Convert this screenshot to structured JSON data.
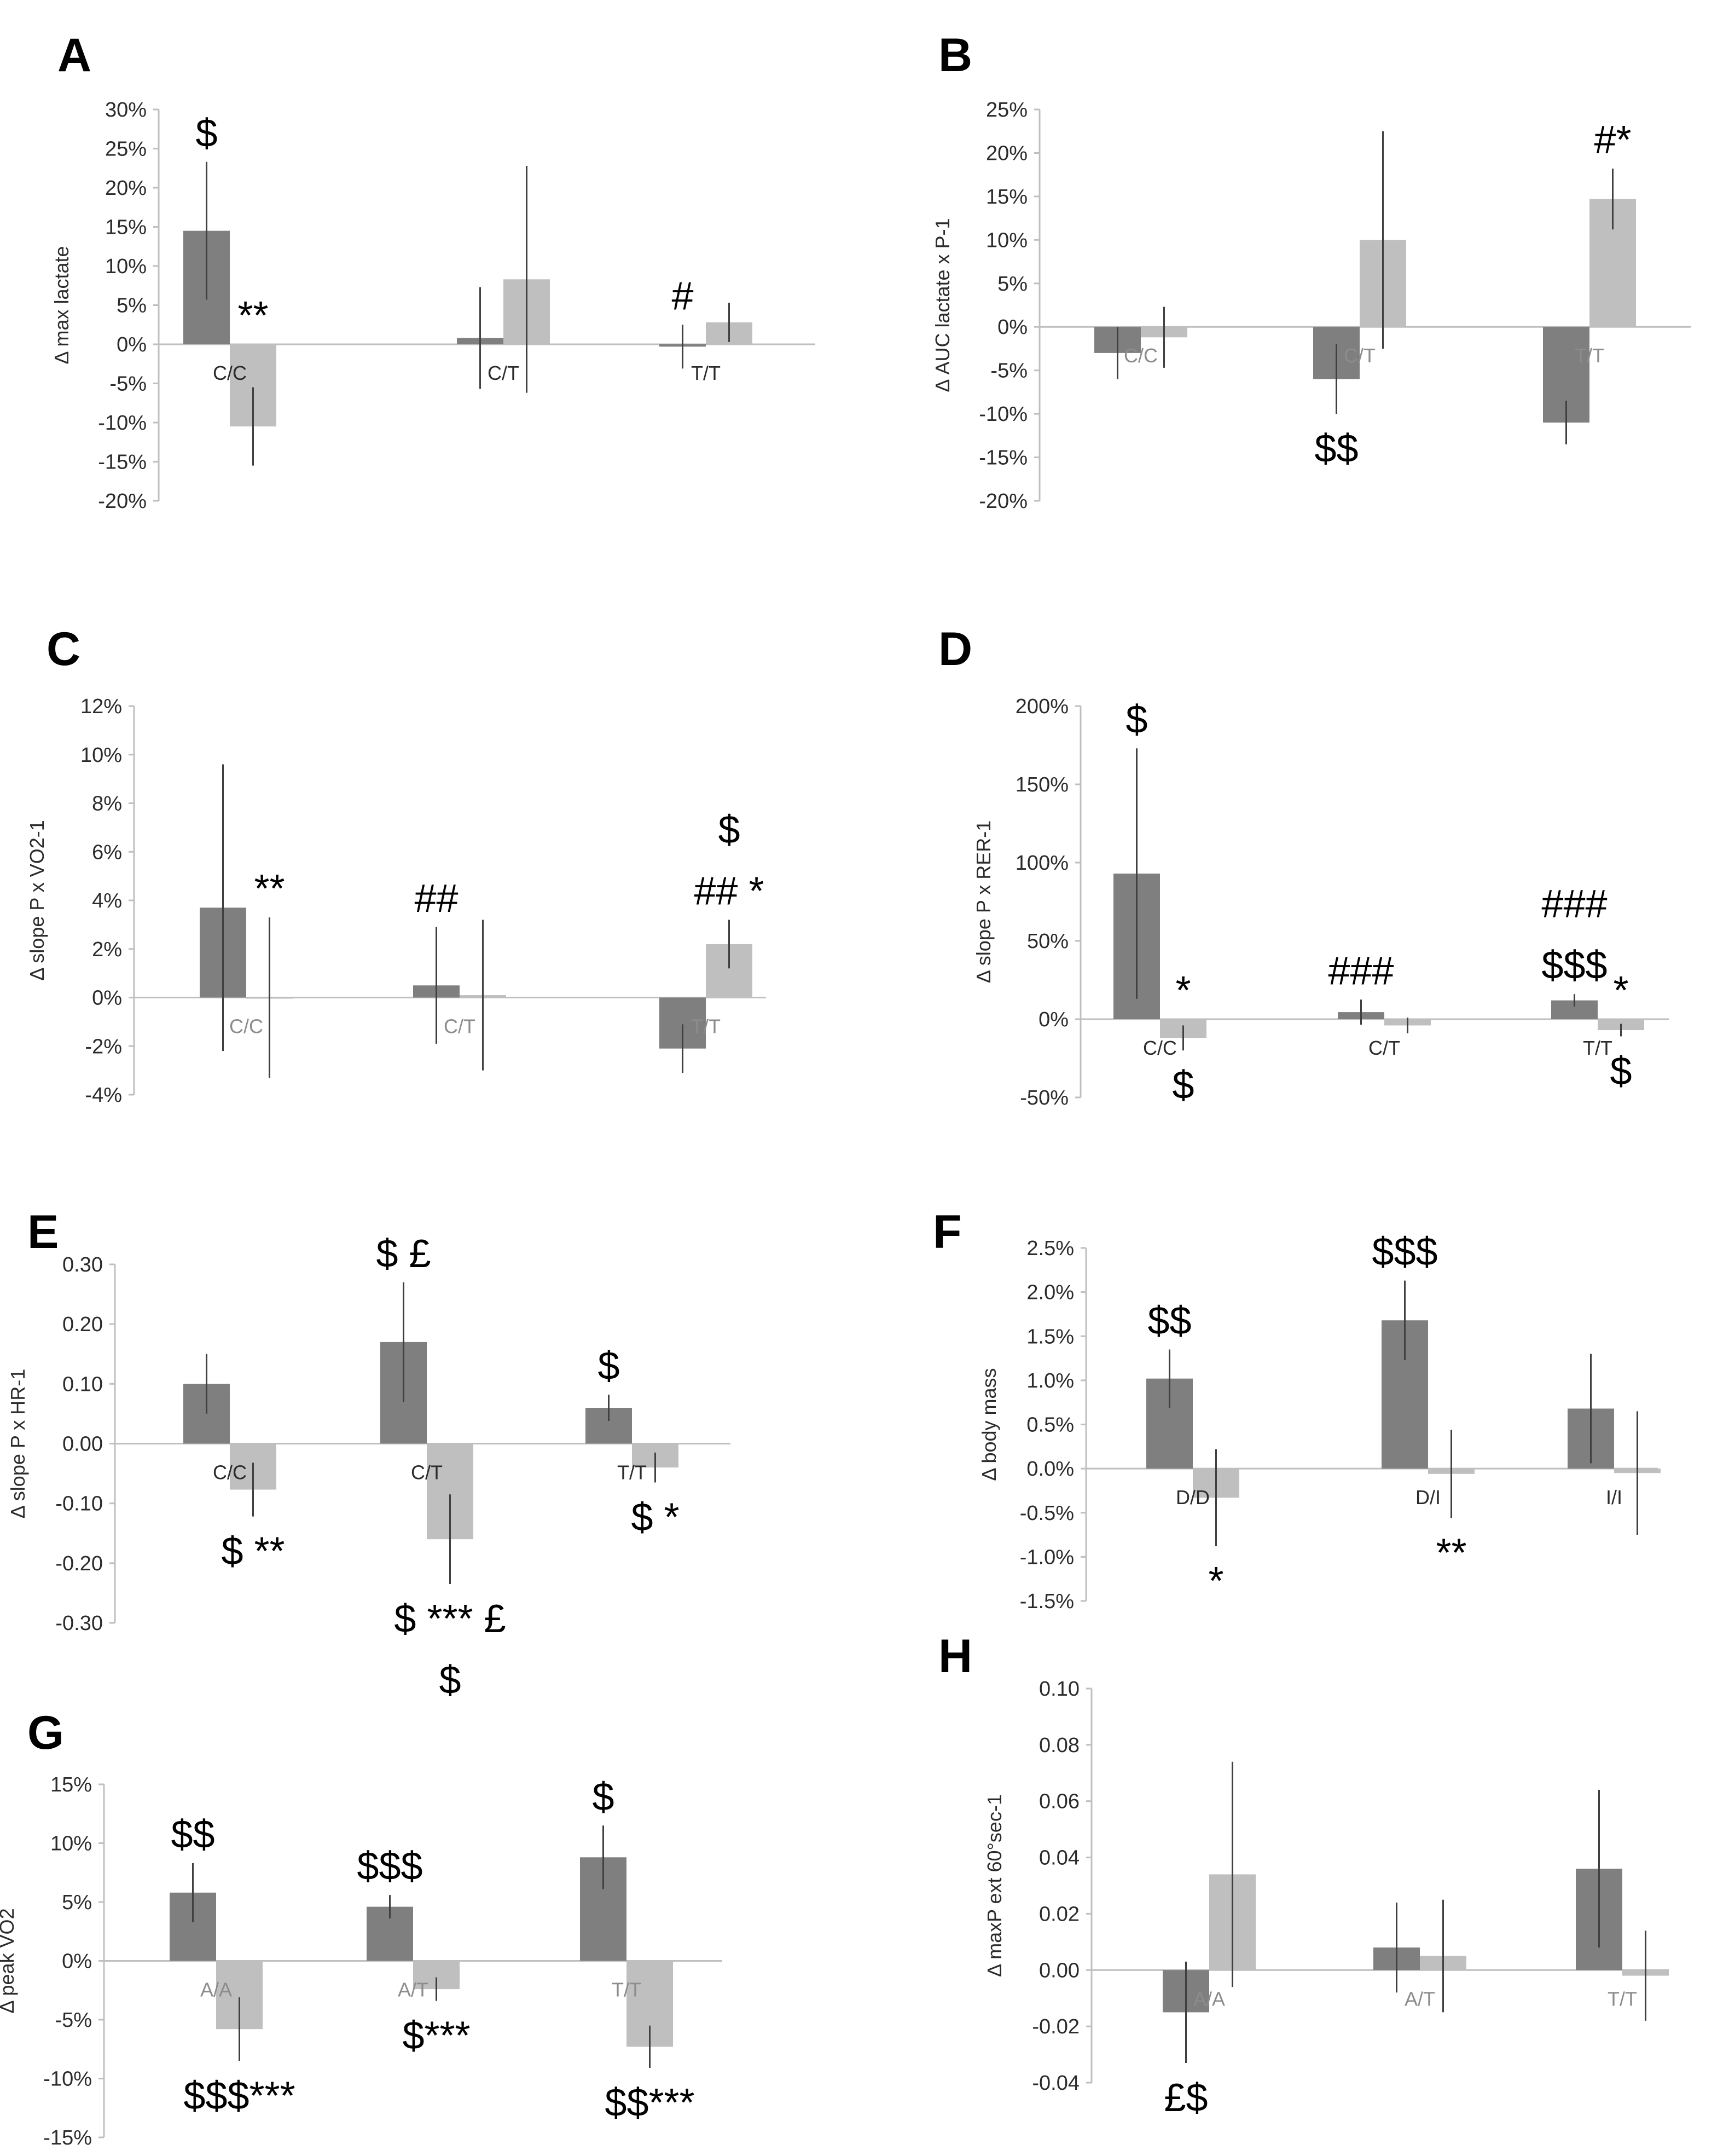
{
  "figure": {
    "colors": {
      "dark_bar": "#7f7f7f",
      "light_bar": "#bfbfbf",
      "axis": "#bfbfbf",
      "error_bar": "#404040",
      "text": "#2b2b2b",
      "annotation": "#000000"
    }
  },
  "chart_data": [
    {
      "id": "A",
      "type": "bar",
      "panel_label": "A",
      "title": "",
      "ylabel": "Δ max lactate",
      "ylim": [
        -20,
        30
      ],
      "yticks": [
        -20,
        -15,
        -10,
        -5,
        0,
        5,
        10,
        15,
        20,
        25,
        30
      ],
      "tick_format": "percent0",
      "categories": [
        "C/C",
        "C/T",
        "T/T"
      ],
      "series": [
        {
          "name": "dark",
          "values": [
            14.5,
            0.8,
            -0.3
          ],
          "errors": [
            8.8,
            6.5,
            2.8
          ]
        },
        {
          "name": "light",
          "values": [
            -10.5,
            8.3,
            2.8
          ],
          "errors": [
            5.0,
            14.5,
            2.5
          ]
        }
      ],
      "annotations": [
        {
          "text": "$",
          "group": 0,
          "series": 0,
          "pos": "above"
        },
        {
          "text": "**",
          "group": 0,
          "series": 1,
          "pos": "above"
        },
        {
          "text": "#",
          "group": 2,
          "series": 0,
          "pos": "above"
        }
      ]
    },
    {
      "id": "B",
      "type": "bar",
      "panel_label": "B",
      "title": "",
      "ylabel": "Δ AUC lactate x P-1",
      "ylim": [
        -20,
        25
      ],
      "yticks": [
        -20,
        -15,
        -10,
        -5,
        0,
        5,
        10,
        15,
        20,
        25
      ],
      "tick_format": "percent0",
      "categories": [
        "C/C",
        "C/T",
        "T/T"
      ],
      "series": [
        {
          "name": "dark",
          "values": [
            -3.0,
            -6.0,
            -11.0
          ],
          "errors": [
            3.0,
            4.0,
            2.5
          ]
        },
        {
          "name": "light",
          "values": [
            -1.2,
            10.0,
            14.7
          ],
          "errors": [
            3.5,
            12.5,
            3.5
          ]
        }
      ],
      "annotations": [
        {
          "text": "$$",
          "group": 1,
          "series": 0,
          "pos": "below"
        },
        {
          "text": "#*",
          "group": 2,
          "series": 1,
          "pos": "above"
        }
      ]
    },
    {
      "id": "C",
      "type": "bar",
      "panel_label": "C",
      "title": "",
      "ylabel": "Δ slope P x VO2-1",
      "ylim": [
        -4,
        12
      ],
      "yticks": [
        -4,
        -2,
        0,
        2,
        4,
        6,
        8,
        10,
        12
      ],
      "tick_format": "percent0",
      "categories": [
        "C/C",
        "C/T",
        "T/T"
      ],
      "series": [
        {
          "name": "dark",
          "values": [
            3.7,
            0.5,
            -2.1
          ],
          "errors": [
            5.9,
            2.4,
            1.0
          ]
        },
        {
          "name": "light",
          "values": [
            0.0,
            0.1,
            2.2
          ],
          "errors": [
            3.3,
            3.1,
            1.0
          ]
        }
      ],
      "annotations": [
        {
          "text": "**",
          "group": 0,
          "series": 1,
          "pos": "above"
        },
        {
          "text": "##",
          "group": 1,
          "series": 0,
          "pos": "above"
        },
        {
          "text": "$",
          "group": 2,
          "series": 1,
          "pos": "above2"
        },
        {
          "text": "## *",
          "group": 2,
          "series": 1,
          "pos": "above"
        }
      ]
    },
    {
      "id": "D",
      "type": "bar",
      "panel_label": "D",
      "title": "",
      "ylabel": "Δ slope P x RER-1",
      "ylim": [
        -50,
        200
      ],
      "yticks": [
        -50,
        0,
        50,
        100,
        150,
        200
      ],
      "tick_format": "percent0",
      "categories": [
        "C/C",
        "C/T",
        "T/T"
      ],
      "series": [
        {
          "name": "dark",
          "values": [
            93,
            4.5,
            12
          ],
          "errors": [
            80,
            8,
            4
          ]
        },
        {
          "name": "light",
          "values": [
            -12,
            -4,
            -7
          ],
          "errors": [
            8,
            5,
            4
          ]
        }
      ],
      "annotations": [
        {
          "text": "$",
          "group": 0,
          "series": 0,
          "pos": "above"
        },
        {
          "text": "*",
          "group": 0,
          "series": 1,
          "pos": "above"
        },
        {
          "text": "$",
          "group": 0,
          "series": 1,
          "pos": "below"
        },
        {
          "text": "###",
          "group": 1,
          "series": 0,
          "pos": "above"
        },
        {
          "text": "###",
          "group": 2,
          "series": 0,
          "pos": "above2"
        },
        {
          "text": "$$$",
          "group": 2,
          "series": 0,
          "pos": "above"
        },
        {
          "text": "*",
          "group": 2,
          "series": 1,
          "pos": "above"
        },
        {
          "text": "$",
          "group": 2,
          "series": 1,
          "pos": "below"
        }
      ]
    },
    {
      "id": "E",
      "type": "bar",
      "panel_label": "E",
      "title": "",
      "ylabel": "Δ slope P x HR-1",
      "ylim": [
        -0.3,
        0.3
      ],
      "yticks": [
        -0.3,
        -0.2,
        -0.1,
        0,
        0.1,
        0.2,
        0.3
      ],
      "tick_format": "fixed2",
      "categories": [
        "C/C",
        "C/T",
        "T/T"
      ],
      "series": [
        {
          "name": "dark",
          "values": [
            0.1,
            0.17,
            0.06
          ],
          "errors": [
            0.05,
            0.1,
            0.022
          ]
        },
        {
          "name": "light",
          "values": [
            -0.077,
            -0.16,
            -0.04
          ],
          "errors": [
            0.045,
            0.075,
            0.025
          ]
        }
      ],
      "annotations": [
        {
          "text": "$ **",
          "group": 0,
          "series": 1,
          "pos": "below"
        },
        {
          "text": "$ £",
          "group": 1,
          "series": 0,
          "pos": "above"
        },
        {
          "text": "$ *** £",
          "group": 1,
          "series": 1,
          "pos": "below"
        },
        {
          "text": "$",
          "group": 1,
          "series": 1,
          "pos": "below2"
        },
        {
          "text": "$",
          "group": 2,
          "series": 0,
          "pos": "above"
        },
        {
          "text": "$ *",
          "group": 2,
          "series": 1,
          "pos": "below"
        }
      ]
    },
    {
      "id": "F",
      "type": "bar",
      "panel_label": "F",
      "title": "",
      "ylabel": "Δ body mass",
      "ylim": [
        -1.5,
        2.5
      ],
      "yticks": [
        -1.5,
        -1.0,
        -0.5,
        0,
        0.5,
        1.0,
        1.5,
        2.0,
        2.5
      ],
      "tick_format": "percent1",
      "categories": [
        "D/D",
        "D/I",
        "I/I"
      ],
      "series": [
        {
          "name": "dark",
          "values": [
            1.02,
            1.68,
            0.68
          ],
          "errors": [
            0.33,
            0.45,
            0.62
          ]
        },
        {
          "name": "light",
          "values": [
            -0.33,
            -0.06,
            -0.05
          ],
          "errors": [
            0.55,
            0.5,
            0.7
          ]
        }
      ],
      "annotations": [
        {
          "text": "$$",
          "group": 0,
          "series": 0,
          "pos": "above"
        },
        {
          "text": "*",
          "group": 0,
          "series": 1,
          "pos": "below"
        },
        {
          "text": "$$$",
          "group": 1,
          "series": 0,
          "pos": "above"
        },
        {
          "text": "**",
          "group": 1,
          "series": 1,
          "pos": "below"
        }
      ]
    },
    {
      "id": "G",
      "type": "bar",
      "panel_label": "G",
      "title": "",
      "ylabel": "Δ peak VO2",
      "ylim": [
        -15,
        15
      ],
      "yticks": [
        -15,
        -10,
        -5,
        0,
        5,
        10,
        15
      ],
      "tick_format": "percent0",
      "categories": [
        "A/A",
        "A/T",
        "T/T"
      ],
      "series": [
        {
          "name": "dark",
          "values": [
            5.8,
            4.6,
            8.8
          ],
          "errors": [
            2.5,
            1.0,
            2.7
          ]
        },
        {
          "name": "light",
          "values": [
            -5.8,
            -2.4,
            -7.3
          ],
          "errors": [
            2.7,
            1.0,
            1.8
          ]
        }
      ],
      "annotations": [
        {
          "text": "$$",
          "group": 0,
          "series": 0,
          "pos": "above"
        },
        {
          "text": "$$$***",
          "group": 0,
          "series": 1,
          "pos": "below"
        },
        {
          "text": "$$$",
          "group": 1,
          "series": 0,
          "pos": "above"
        },
        {
          "text": "$***",
          "group": 1,
          "series": 1,
          "pos": "below"
        },
        {
          "text": "$",
          "group": 2,
          "series": 0,
          "pos": "above"
        },
        {
          "text": "$$***",
          "group": 2,
          "series": 1,
          "pos": "below"
        }
      ]
    },
    {
      "id": "H",
      "type": "bar",
      "panel_label": "H",
      "title": "",
      "ylabel": "Δ maxP ext 60°sec-1",
      "ylim": [
        -0.04,
        0.1
      ],
      "yticks": [
        -0.04,
        -0.02,
        0,
        0.02,
        0.04,
        0.06,
        0.08,
        0.1
      ],
      "tick_format": "fixed2",
      "categories": [
        "A/A",
        "A/T",
        "T/T"
      ],
      "series": [
        {
          "name": "dark",
          "values": [
            -0.015,
            0.008,
            0.036
          ],
          "errors": [
            0.018,
            0.016,
            0.028
          ]
        },
        {
          "name": "light",
          "values": [
            0.034,
            0.005,
            -0.002
          ],
          "errors": [
            0.04,
            0.02,
            0.016
          ]
        }
      ],
      "annotations": [
        {
          "text": "£$",
          "group": 0,
          "series": 0,
          "pos": "below"
        }
      ]
    }
  ]
}
